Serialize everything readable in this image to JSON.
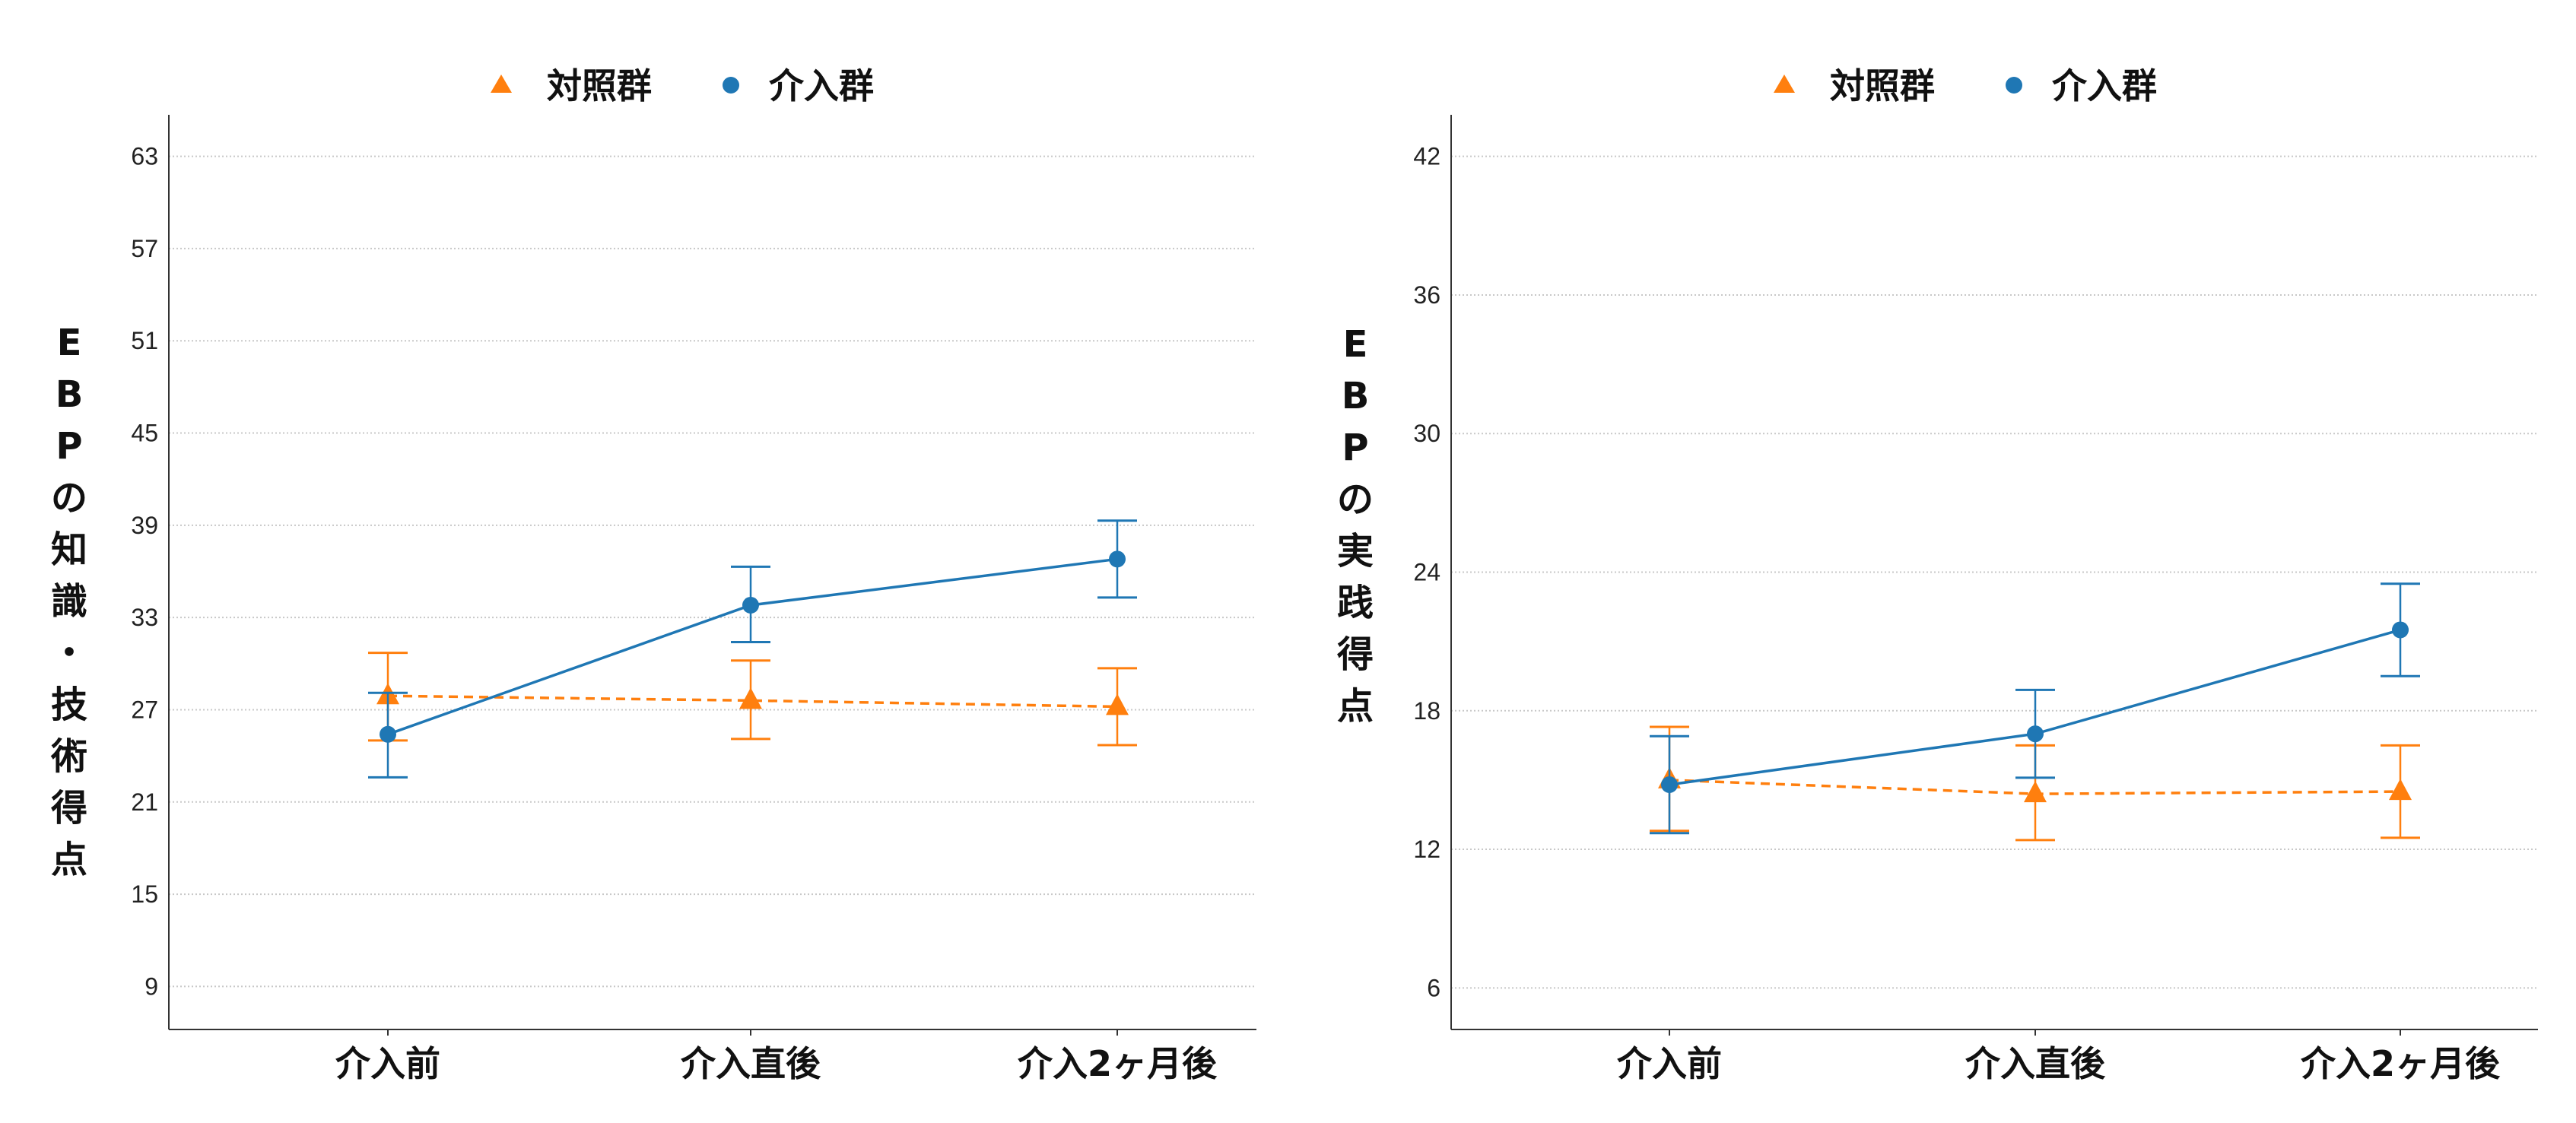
{
  "colors": {
    "control": "#ff7f0e",
    "intervention": "#1f77b4",
    "grid": "#c8c8c8",
    "axis": "#333333"
  },
  "chart_data": [
    {
      "type": "line",
      "title": "",
      "xlabel": "",
      "ylabel": "EBPの知識・技術得点",
      "categories": [
        "介入前",
        "介入直後",
        "介入2ヶ月後"
      ],
      "yticks": [
        9,
        15,
        21,
        27,
        33,
        39,
        45,
        51,
        57,
        63
      ],
      "ylim": [
        6.2,
        65.7
      ],
      "grid": "horizontal dotted",
      "legend": {
        "placement": "top-center",
        "entries": [
          "対照群",
          "介入群"
        ]
      },
      "series": [
        {
          "name": "対照群",
          "marker": "triangle",
          "line": "dashed",
          "values": [
            27.9,
            27.6,
            27.2
          ],
          "err_low": [
            25.0,
            25.1,
            24.7
          ],
          "err_high": [
            30.7,
            30.2,
            29.7
          ]
        },
        {
          "name": "介入群",
          "marker": "circle",
          "line": "solid",
          "values": [
            25.4,
            33.8,
            36.8
          ],
          "err_low": [
            22.6,
            31.4,
            34.3
          ],
          "err_high": [
            28.1,
            36.3,
            39.3
          ]
        }
      ]
    },
    {
      "type": "line",
      "title": "",
      "xlabel": "",
      "ylabel": "EBPの実践得点",
      "categories": [
        "介入前",
        "介入直後",
        "介入2ヶ月後"
      ],
      "yticks": [
        6,
        12,
        18,
        24,
        30,
        36,
        42
      ],
      "ylim": [
        4.2,
        43.8
      ],
      "grid": "horizontal dotted",
      "legend": {
        "placement": "top-center",
        "entries": [
          "対照群",
          "介入群"
        ]
      },
      "series": [
        {
          "name": "対照群",
          "marker": "triangle",
          "line": "dashed",
          "values": [
            15.0,
            14.4,
            14.5
          ],
          "err_low": [
            12.8,
            12.4,
            12.5
          ],
          "err_high": [
            17.3,
            16.5,
            16.5
          ]
        },
        {
          "name": "介入群",
          "marker": "circle",
          "line": "solid",
          "values": [
            14.8,
            17.0,
            21.5
          ],
          "err_low": [
            12.7,
            15.1,
            19.5
          ],
          "err_high": [
            16.9,
            18.9,
            23.5
          ]
        }
      ]
    }
  ]
}
